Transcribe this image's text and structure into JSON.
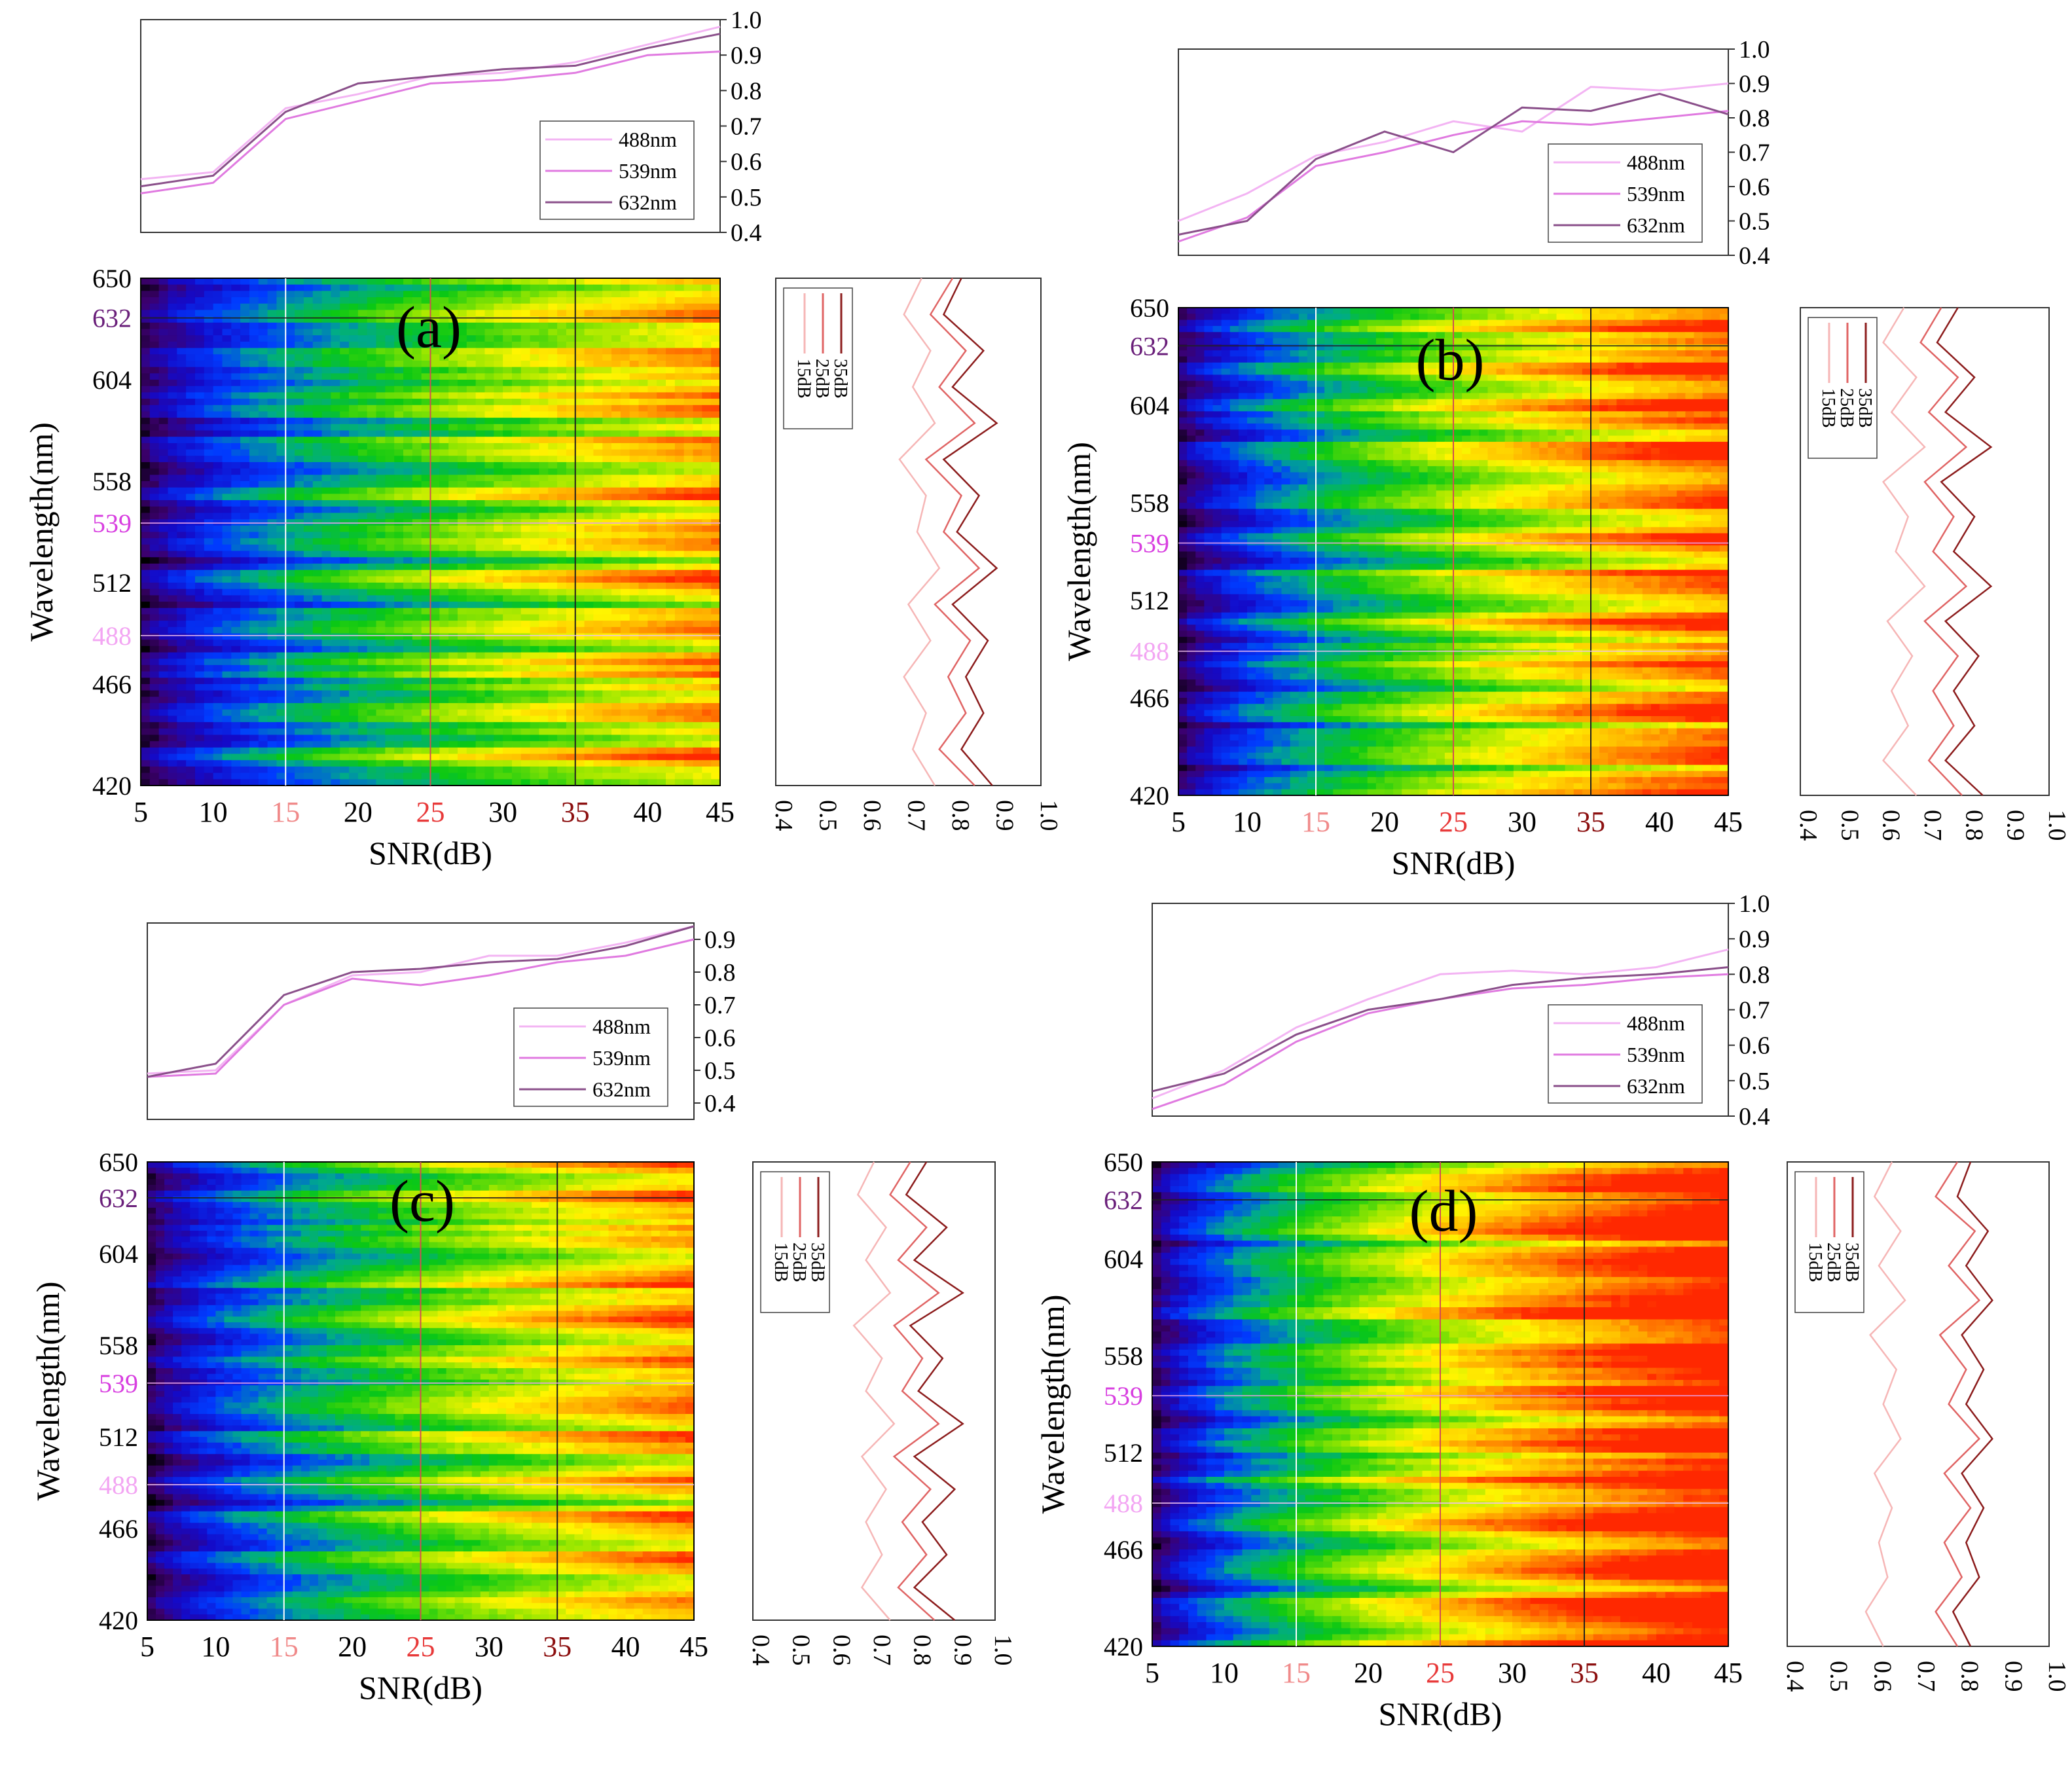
{
  "figure": {
    "label": "Four-panel SNR vs wavelength contour figure"
  },
  "colors": {
    "line488": "#f3b4f3",
    "line539": "#e07ae0",
    "line632": "#8a4f8a",
    "db15": "#f6b6b6",
    "db25": "#e06464",
    "db35": "#8c1c1c",
    "tick488": "#f3a6f3",
    "tick539": "#d83fe0",
    "tick632": "#6a1f7a",
    "xtick15": "#f08a8a",
    "xtick25": "#e83a3a",
    "xtick35": "#8c1010"
  },
  "chart_data": [
    {
      "panel": "a",
      "type": "heatmap",
      "panel_label": "(a)",
      "xlabel": "SNR(dB)",
      "ylabel": "Wavelength(nm)",
      "x_ticks": [
        "5",
        "10",
        "15",
        "20",
        "25",
        "30",
        "35",
        "40",
        "45"
      ],
      "y_ticks": [
        "420",
        "466",
        "488",
        "512",
        "539",
        "558",
        "604",
        "632",
        "650"
      ],
      "xlim": [
        5,
        45
      ],
      "ylim": [
        420,
        650
      ],
      "vertical_markers": [
        15,
        25,
        35
      ],
      "horizontal_markers": [
        488,
        539,
        632
      ],
      "top": {
        "type": "line",
        "x": [
          5,
          10,
          15,
          20,
          25,
          30,
          35,
          40,
          45
        ],
        "ylim": [
          0.4,
          1.0
        ],
        "y_ticks": [
          "0.4",
          "0.5",
          "0.6",
          "0.7",
          "0.8",
          "0.9",
          "1.0"
        ],
        "legend": [
          "488nm",
          "539nm",
          "632nm"
        ],
        "series": [
          {
            "name": "488nm",
            "values": [
              0.55,
              0.57,
              0.75,
              0.79,
              0.84,
              0.85,
              0.88,
              0.93,
              0.98
            ]
          },
          {
            "name": "539nm",
            "values": [
              0.51,
              0.54,
              0.72,
              0.77,
              0.82,
              0.83,
              0.85,
              0.9,
              0.91
            ]
          },
          {
            "name": "632nm",
            "values": [
              0.53,
              0.56,
              0.74,
              0.82,
              0.84,
              0.86,
              0.87,
              0.92,
              0.96
            ]
          }
        ]
      },
      "side": {
        "type": "line",
        "xlim": [
          0.4,
          1.0
        ],
        "x_ticks": [
          "0.4",
          "0.5",
          "0.6",
          "0.7",
          "0.8",
          "0.9",
          "1.0"
        ],
        "legend": [
          "35dB",
          "25dB",
          "15dB"
        ],
        "series": [
          {
            "name": "15dB",
            "values": [
              0.73,
              0.69,
              0.75,
              0.71,
              0.76,
              0.68,
              0.74,
              0.72,
              0.77,
              0.7,
              0.75,
              0.69,
              0.74,
              0.71,
              0.76
            ]
          },
          {
            "name": "25dB",
            "values": [
              0.8,
              0.75,
              0.83,
              0.77,
              0.85,
              0.74,
              0.82,
              0.78,
              0.86,
              0.76,
              0.84,
              0.79,
              0.83,
              0.77,
              0.85
            ]
          },
          {
            "name": "35dB",
            "values": [
              0.82,
              0.78,
              0.87,
              0.8,
              0.9,
              0.78,
              0.86,
              0.81,
              0.9,
              0.8,
              0.88,
              0.83,
              0.87,
              0.82,
              0.89
            ]
          }
        ]
      },
      "heat_strength": 0.82
    },
    {
      "panel": "b",
      "type": "heatmap",
      "panel_label": "(b)",
      "xlabel": "SNR(dB)",
      "ylabel": "Wavelength(nm)",
      "x_ticks": [
        "5",
        "10",
        "15",
        "20",
        "25",
        "30",
        "35",
        "40",
        "45"
      ],
      "y_ticks": [
        "420",
        "466",
        "488",
        "512",
        "539",
        "558",
        "604",
        "632",
        "650"
      ],
      "xlim": [
        5,
        45
      ],
      "ylim": [
        420,
        650
      ],
      "vertical_markers": [
        15,
        25,
        35
      ],
      "horizontal_markers": [
        488,
        539,
        632
      ],
      "top": {
        "type": "line",
        "x": [
          5,
          10,
          15,
          20,
          25,
          30,
          35,
          40,
          45
        ],
        "ylim": [
          0.4,
          1.0
        ],
        "y_ticks": [
          "0.4",
          "0.5",
          "0.6",
          "0.7",
          "0.8",
          "0.9",
          "1.0"
        ],
        "legend": [
          "488nm",
          "539nm",
          "632nm"
        ],
        "series": [
          {
            "name": "488nm",
            "values": [
              0.5,
              0.58,
              0.69,
              0.73,
              0.79,
              0.76,
              0.89,
              0.88,
              0.9
            ]
          },
          {
            "name": "539nm",
            "values": [
              0.44,
              0.51,
              0.66,
              0.7,
              0.75,
              0.79,
              0.78,
              0.8,
              0.82
            ]
          },
          {
            "name": "632nm",
            "values": [
              0.46,
              0.5,
              0.68,
              0.76,
              0.7,
              0.83,
              0.82,
              0.87,
              0.81
            ]
          }
        ]
      },
      "side": {
        "type": "line",
        "xlim": [
          0.4,
          1.0
        ],
        "x_ticks": [
          "0.4",
          "0.5",
          "0.6",
          "0.7",
          "0.8",
          "0.9",
          "1.0"
        ],
        "legend": [
          "35dB",
          "25dB",
          "15dB"
        ],
        "series": [
          {
            "name": "15dB",
            "values": [
              0.65,
              0.6,
              0.68,
              0.62,
              0.7,
              0.6,
              0.66,
              0.63,
              0.7,
              0.61,
              0.67,
              0.62,
              0.66,
              0.6,
              0.68
            ]
          },
          {
            "name": "25dB",
            "values": [
              0.74,
              0.69,
              0.78,
              0.71,
              0.8,
              0.7,
              0.77,
              0.72,
              0.8,
              0.7,
              0.78,
              0.72,
              0.77,
              0.71,
              0.79
            ]
          },
          {
            "name": "35dB",
            "values": [
              0.78,
              0.73,
              0.82,
              0.75,
              0.86,
              0.74,
              0.82,
              0.77,
              0.86,
              0.75,
              0.83,
              0.77,
              0.82,
              0.75,
              0.84
            ]
          }
        ]
      },
      "heat_strength": 0.95
    },
    {
      "panel": "c",
      "type": "heatmap",
      "panel_label": "(c)",
      "xlabel": "SNR(dB)",
      "ylabel": "Wavelength(nm)",
      "x_ticks": [
        "5",
        "10",
        "15",
        "20",
        "25",
        "30",
        "35",
        "40",
        "45"
      ],
      "y_ticks": [
        "420",
        "466",
        "488",
        "512",
        "539",
        "558",
        "604",
        "632",
        "650"
      ],
      "xlim": [
        5,
        45
      ],
      "ylim": [
        420,
        650
      ],
      "vertical_markers": [
        15,
        25,
        35
      ],
      "horizontal_markers": [
        488,
        539,
        632
      ],
      "top": {
        "type": "line",
        "x": [
          5,
          10,
          15,
          20,
          25,
          30,
          35,
          40,
          45
        ],
        "ylim": [
          0.35,
          0.95
        ],
        "y_ticks": [
          "0.4",
          "0.5",
          "0.6",
          "0.7",
          "0.8",
          "0.9"
        ],
        "legend": [
          "488nm",
          "539nm",
          "632nm"
        ],
        "series": [
          {
            "name": "488nm",
            "values": [
              0.49,
              0.5,
              0.7,
              0.79,
              0.8,
              0.85,
              0.85,
              0.89,
              0.94
            ]
          },
          {
            "name": "539nm",
            "values": [
              0.48,
              0.49,
              0.7,
              0.78,
              0.76,
              0.79,
              0.83,
              0.85,
              0.9
            ]
          },
          {
            "name": "632nm",
            "values": [
              0.48,
              0.52,
              0.73,
              0.8,
              0.81,
              0.83,
              0.84,
              0.88,
              0.94
            ]
          }
        ]
      },
      "side": {
        "type": "line",
        "xlim": [
          0.4,
          1.0
        ],
        "x_ticks": [
          "0.4",
          "0.5",
          "0.6",
          "0.7",
          "0.8",
          "0.9",
          "1.0"
        ],
        "legend": [
          "35dB",
          "25dB",
          "15dB"
        ],
        "series": [
          {
            "name": "15dB",
            "values": [
              0.7,
              0.66,
              0.73,
              0.68,
              0.74,
              0.65,
              0.72,
              0.68,
              0.75,
              0.67,
              0.73,
              0.68,
              0.72,
              0.67,
              0.74
            ]
          },
          {
            "name": "25dB",
            "values": [
              0.79,
              0.74,
              0.83,
              0.76,
              0.86,
              0.75,
              0.82,
              0.77,
              0.86,
              0.75,
              0.84,
              0.77,
              0.83,
              0.76,
              0.85
            ]
          },
          {
            "name": "35dB",
            "values": [
              0.83,
              0.78,
              0.88,
              0.8,
              0.92,
              0.79,
              0.87,
              0.81,
              0.92,
              0.8,
              0.9,
              0.82,
              0.88,
              0.8,
              0.9
            ]
          }
        ]
      },
      "heat_strength": 0.85
    },
    {
      "panel": "d",
      "type": "heatmap",
      "panel_label": "(d)",
      "xlabel": "SNR(dB)",
      "ylabel": "Wavelength(nm)",
      "x_ticks": [
        "5",
        "10",
        "15",
        "20",
        "25",
        "30",
        "35",
        "40",
        "45"
      ],
      "y_ticks": [
        "420",
        "466",
        "488",
        "512",
        "539",
        "558",
        "604",
        "632",
        "650"
      ],
      "xlim": [
        5,
        45
      ],
      "ylim": [
        420,
        650
      ],
      "vertical_markers": [
        15,
        25,
        35
      ],
      "horizontal_markers": [
        488,
        539,
        632
      ],
      "top": {
        "type": "line",
        "x": [
          5,
          10,
          15,
          20,
          25,
          30,
          35,
          40,
          45
        ],
        "ylim": [
          0.4,
          1.0
        ],
        "y_ticks": [
          "0.4",
          "0.5",
          "0.6",
          "0.7",
          "0.8",
          "0.9",
          "1.0"
        ],
        "legend": [
          "488nm",
          "539nm",
          "632nm"
        ],
        "series": [
          {
            "name": "488nm",
            "values": [
              0.45,
              0.53,
              0.65,
              0.73,
              0.8,
              0.81,
              0.8,
              0.82,
              0.87
            ]
          },
          {
            "name": "539nm",
            "values": [
              0.42,
              0.49,
              0.61,
              0.69,
              0.73,
              0.76,
              0.77,
              0.79,
              0.8
            ]
          },
          {
            "name": "632nm",
            "values": [
              0.47,
              0.52,
              0.63,
              0.7,
              0.73,
              0.77,
              0.79,
              0.8,
              0.82
            ]
          }
        ]
      },
      "side": {
        "type": "line",
        "xlim": [
          0.4,
          1.0
        ],
        "x_ticks": [
          "0.4",
          "0.5",
          "0.6",
          "0.7",
          "0.8",
          "0.9",
          "1.0"
        ],
        "legend": [
          "35dB",
          "25dB",
          "15dB"
        ],
        "series": [
          {
            "name": "15dB",
            "values": [
              0.64,
              0.6,
              0.66,
              0.61,
              0.67,
              0.59,
              0.65,
              0.62,
              0.66,
              0.6,
              0.64,
              0.61,
              0.63,
              0.58,
              0.62
            ]
          },
          {
            "name": "25dB",
            "values": [
              0.79,
              0.74,
              0.83,
              0.77,
              0.84,
              0.75,
              0.81,
              0.77,
              0.84,
              0.76,
              0.82,
              0.76,
              0.8,
              0.74,
              0.79
            ]
          },
          {
            "name": "35dB",
            "values": [
              0.82,
              0.79,
              0.86,
              0.81,
              0.87,
              0.8,
              0.85,
              0.81,
              0.87,
              0.8,
              0.85,
              0.81,
              0.84,
              0.78,
              0.82
            ]
          }
        ]
      },
      "heat_strength": 1.1
    }
  ]
}
